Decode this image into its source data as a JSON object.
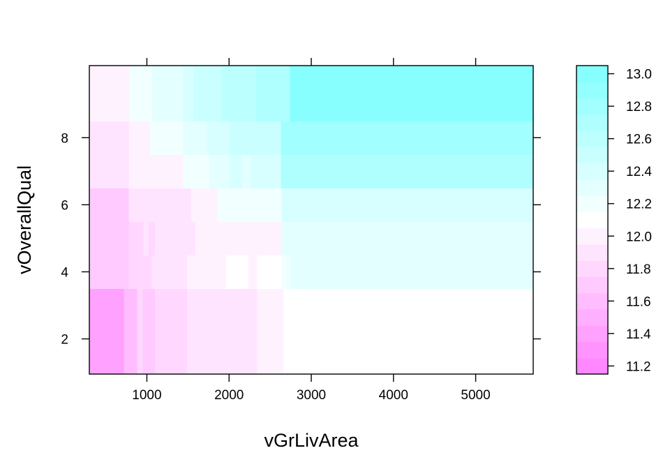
{
  "chart_data": {
    "type": "heatmap",
    "title": "",
    "xlabel": "vGrLivArea",
    "ylabel": "vOverallQual",
    "xlim": [
      300,
      5700
    ],
    "ylim": [
      0.95,
      10.15
    ],
    "x_ticks": [
      1000,
      2000,
      3000,
      4000,
      5000
    ],
    "y_ticks": [
      2,
      4,
      6,
      8
    ],
    "x_tick_labels": [
      "1000",
      "2000",
      "3000",
      "4000",
      "5000"
    ],
    "y_tick_labels": [
      "2",
      "4",
      "6",
      "8"
    ],
    "colorkey": {
      "range": [
        11.15,
        13.05
      ],
      "ticks": [
        11.2,
        11.4,
        11.6,
        11.8,
        12.0,
        12.2,
        12.4,
        12.6,
        12.8,
        13.0
      ],
      "tick_labels": [
        "11.2",
        "11.4",
        "11.6",
        "11.8",
        "12.0",
        "12.2",
        "12.4",
        "12.6",
        "12.8",
        "13.0"
      ],
      "levels": [
        11.15,
        11.25,
        11.35,
        11.45,
        11.55,
        11.65,
        11.75,
        11.85,
        11.95,
        12.05,
        12.15,
        12.25,
        12.35,
        12.45,
        12.55,
        12.65,
        12.75,
        12.85,
        12.95,
        13.05
      ],
      "low_color": "#ff80ff",
      "mid_color": "#ffffff",
      "high_color": "#80ffff"
    },
    "rows": [
      {
        "y": [
          0.95,
          3.5
        ],
        "cells": [
          {
            "x": [
              300,
              720
            ],
            "z": 11.35
          },
          {
            "x": [
              720,
              790
            ],
            "z": 11.55
          },
          {
            "x": [
              790,
              880
            ],
            "z": 11.6
          },
          {
            "x": [
              880,
              950
            ],
            "z": 11.75
          },
          {
            "x": [
              950,
              1010
            ],
            "z": 11.65
          },
          {
            "x": [
              1010,
              1100
            ],
            "z": 11.7
          },
          {
            "x": [
              1100,
              1490
            ],
            "z": 11.75
          },
          {
            "x": [
              1490,
              2340
            ],
            "z": 11.85
          },
          {
            "x": [
              2340,
              2660
            ],
            "z": 11.95
          },
          {
            "x": [
              2660,
              5700
            ],
            "z": 12.05
          }
        ]
      },
      {
        "y": [
          3.5,
          4.5
        ],
        "cells": [
          {
            "x": [
              300,
              780
            ],
            "z": 11.7
          },
          {
            "x": [
              780,
              1060
            ],
            "z": 11.8
          },
          {
            "x": [
              1060,
              1490
            ],
            "z": 11.9
          },
          {
            "x": [
              1490,
              1960
            ],
            "z": 11.95
          },
          {
            "x": [
              1960,
              2230
            ],
            "z": 12.05
          },
          {
            "x": [
              2230,
              2340
            ],
            "z": 11.95
          },
          {
            "x": [
              2340,
              2640
            ],
            "z": 12.05
          },
          {
            "x": [
              2640,
              2740
            ],
            "z": 12.15
          },
          {
            "x": [
              2740,
              5700
            ],
            "z": 12.25
          }
        ]
      },
      {
        "y": [
          4.5,
          5.5
        ],
        "cells": [
          {
            "x": [
              300,
              780
            ],
            "z": 11.7
          },
          {
            "x": [
              780,
              960
            ],
            "z": 11.8
          },
          {
            "x": [
              960,
              1020
            ],
            "z": 11.9
          },
          {
            "x": [
              1020,
              1100
            ],
            "z": 11.8
          },
          {
            "x": [
              1100,
              1390
            ],
            "z": 11.85
          },
          {
            "x": [
              1390,
              1590
            ],
            "z": 11.9
          },
          {
            "x": [
              1590,
              2640
            ],
            "z": 12.0
          },
          {
            "x": [
              2640,
              5700
            ],
            "z": 12.25
          }
        ]
      },
      {
        "y": [
          5.5,
          6.5
        ],
        "cells": [
          {
            "x": [
              300,
              780
            ],
            "z": 11.7
          },
          {
            "x": [
              780,
              1110
            ],
            "z": 11.85
          },
          {
            "x": [
              1110,
              1540
            ],
            "z": 11.9
          },
          {
            "x": [
              1540,
              1860
            ],
            "z": 12.0
          },
          {
            "x": [
              1860,
              2640
            ],
            "z": 12.2
          },
          {
            "x": [
              2640,
              5700
            ],
            "z": 12.35
          }
        ]
      },
      {
        "y": [
          6.5,
          7.5
        ],
        "cells": [
          {
            "x": [
              300,
              780
            ],
            "z": 11.85
          },
          {
            "x": [
              780,
              1440
            ],
            "z": 11.95
          },
          {
            "x": [
              1440,
              1760
            ],
            "z": 12.15
          },
          {
            "x": [
              1760,
              2010
            ],
            "z": 12.25
          },
          {
            "x": [
              2010,
              2160
            ],
            "z": 12.35
          },
          {
            "x": [
              2160,
              2260
            ],
            "z": 12.25
          },
          {
            "x": [
              2260,
              2630
            ],
            "z": 12.35
          },
          {
            "x": [
              2630,
              5700
            ],
            "z": 12.65
          }
        ]
      },
      {
        "y": [
          7.5,
          8.5
        ],
        "cells": [
          {
            "x": [
              300,
              780
            ],
            "z": 11.9
          },
          {
            "x": [
              780,
              1040
            ],
            "z": 12.0
          },
          {
            "x": [
              1040,
              1440
            ],
            "z": 12.15
          },
          {
            "x": [
              1440,
              1730
            ],
            "z": 12.25
          },
          {
            "x": [
              1730,
              2010
            ],
            "z": 12.35
          },
          {
            "x": [
              2010,
              2270
            ],
            "z": 12.45
          },
          {
            "x": [
              2270,
              2630
            ],
            "z": 12.5
          },
          {
            "x": [
              2630,
              5700
            ],
            "z": 12.75
          }
        ]
      },
      {
        "y": [
          8.5,
          10.15
        ],
        "cells": [
          {
            "x": [
              300,
              790
            ],
            "z": 12.0
          },
          {
            "x": [
              790,
              1060
            ],
            "z": 12.15
          },
          {
            "x": [
              1060,
              1440
            ],
            "z": 12.3
          },
          {
            "x": [
              1440,
              1570
            ],
            "z": 12.4
          },
          {
            "x": [
              1570,
              1910
            ],
            "z": 12.45
          },
          {
            "x": [
              1910,
              2330
            ],
            "z": 12.55
          },
          {
            "x": [
              2330,
              2740
            ],
            "z": 12.7
          },
          {
            "x": [
              2740,
              5700
            ],
            "z": 12.95
          }
        ]
      }
    ]
  }
}
